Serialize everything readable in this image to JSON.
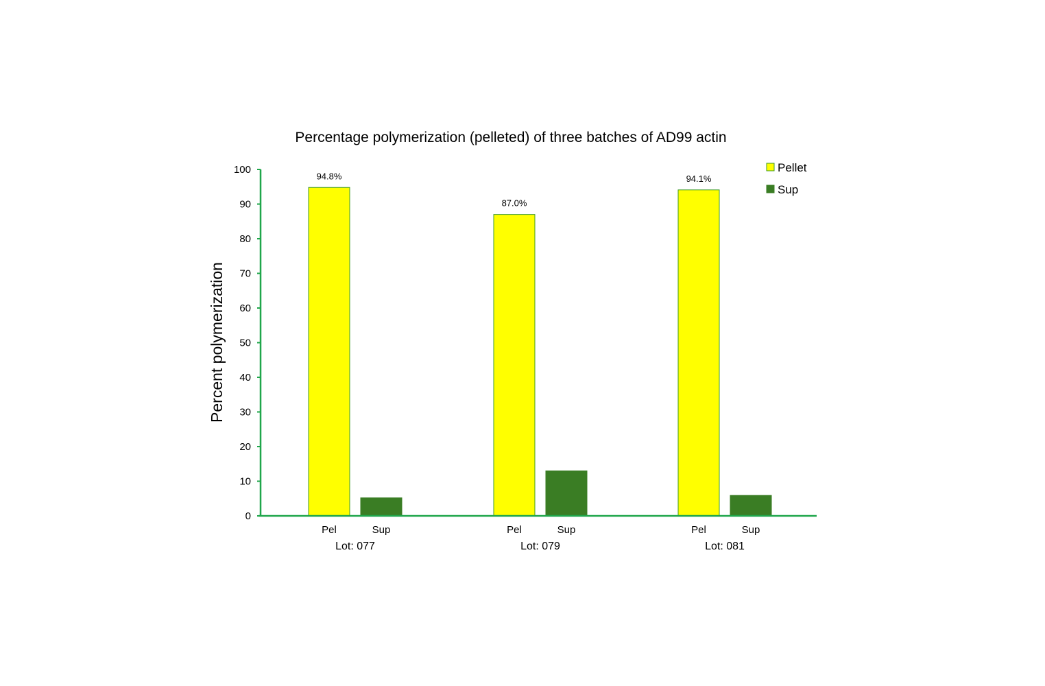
{
  "chart_data": {
    "type": "bar",
    "title": "Percentage polymerization (pelleted) of three batches of AD99 actin",
    "ylabel": "Percent polymerization",
    "xlabel": "",
    "ylim": [
      0,
      100
    ],
    "yticks": [
      0,
      10,
      20,
      30,
      40,
      50,
      60,
      70,
      80,
      90,
      100
    ],
    "grid": false,
    "legend_position": "top-right",
    "groups": [
      {
        "label": "Lot: 077",
        "bars": [
          {
            "label": "Pel",
            "series": "Pellet",
            "value": 94.8,
            "data_label": "94.8%"
          },
          {
            "label": "Sup",
            "series": "Sup",
            "value": 5.2,
            "data_label": ""
          }
        ]
      },
      {
        "label": "Lot: 079",
        "bars": [
          {
            "label": "Pel",
            "series": "Pellet",
            "value": 87.0,
            "data_label": "87.0%"
          },
          {
            "label": "Sup",
            "series": "Sup",
            "value": 13.0,
            "data_label": ""
          }
        ]
      },
      {
        "label": "Lot: 081",
        "bars": [
          {
            "label": "Pel",
            "series": "Pellet",
            "value": 94.1,
            "data_label": "94.1%"
          },
          {
            "label": "Sup",
            "series": "Sup",
            "value": 5.9,
            "data_label": ""
          }
        ]
      }
    ],
    "series": [
      {
        "name": "Pellet",
        "color": "#ffff00",
        "stroke": "#3c9a2a"
      },
      {
        "name": "Sup",
        "color": "#3a7d24",
        "stroke": "#3a7d24"
      }
    ],
    "colors": {
      "axis": "#1fa64a",
      "tick": "#1fa64a"
    }
  }
}
